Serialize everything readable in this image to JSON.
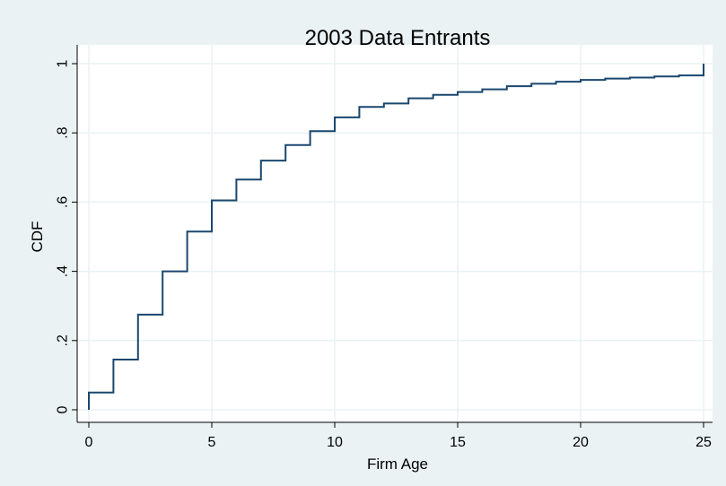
{
  "chart_data": {
    "type": "line",
    "step": true,
    "title": "2003 Data Entrants",
    "xlabel": "Firm Age",
    "ylabel": "CDF",
    "xlim": [
      0,
      25
    ],
    "ylim": [
      0,
      1
    ],
    "grid": true,
    "xticks": [
      0,
      5,
      10,
      15,
      20,
      25
    ],
    "xtick_labels": [
      "0",
      "5",
      "10",
      "15",
      "20",
      "25"
    ],
    "yticks": [
      0,
      0.2,
      0.4,
      0.6,
      0.8,
      1
    ],
    "ytick_labels": [
      "0",
      ".2",
      ".4",
      ".6",
      ".8",
      "1"
    ],
    "series": [
      {
        "color": "#1a476f",
        "x": [
          0,
          1,
          2,
          3,
          4,
          5,
          6,
          7,
          8,
          9,
          10,
          11,
          12,
          13,
          14,
          15,
          16,
          17,
          18,
          19,
          20,
          21,
          22,
          23,
          24,
          25
        ],
        "y": [
          0.05,
          0.145,
          0.275,
          0.4,
          0.515,
          0.605,
          0.665,
          0.72,
          0.765,
          0.805,
          0.845,
          0.875,
          0.885,
          0.9,
          0.91,
          0.918,
          0.926,
          0.935,
          0.942,
          0.948,
          0.953,
          0.957,
          0.96,
          0.963,
          0.966,
          1.0
        ]
      }
    ],
    "colors": {
      "plot_background": "#ffffff",
      "outer_background": "#eaf2f3",
      "grid": "#eaf2f3",
      "line": "#1a476f"
    }
  }
}
